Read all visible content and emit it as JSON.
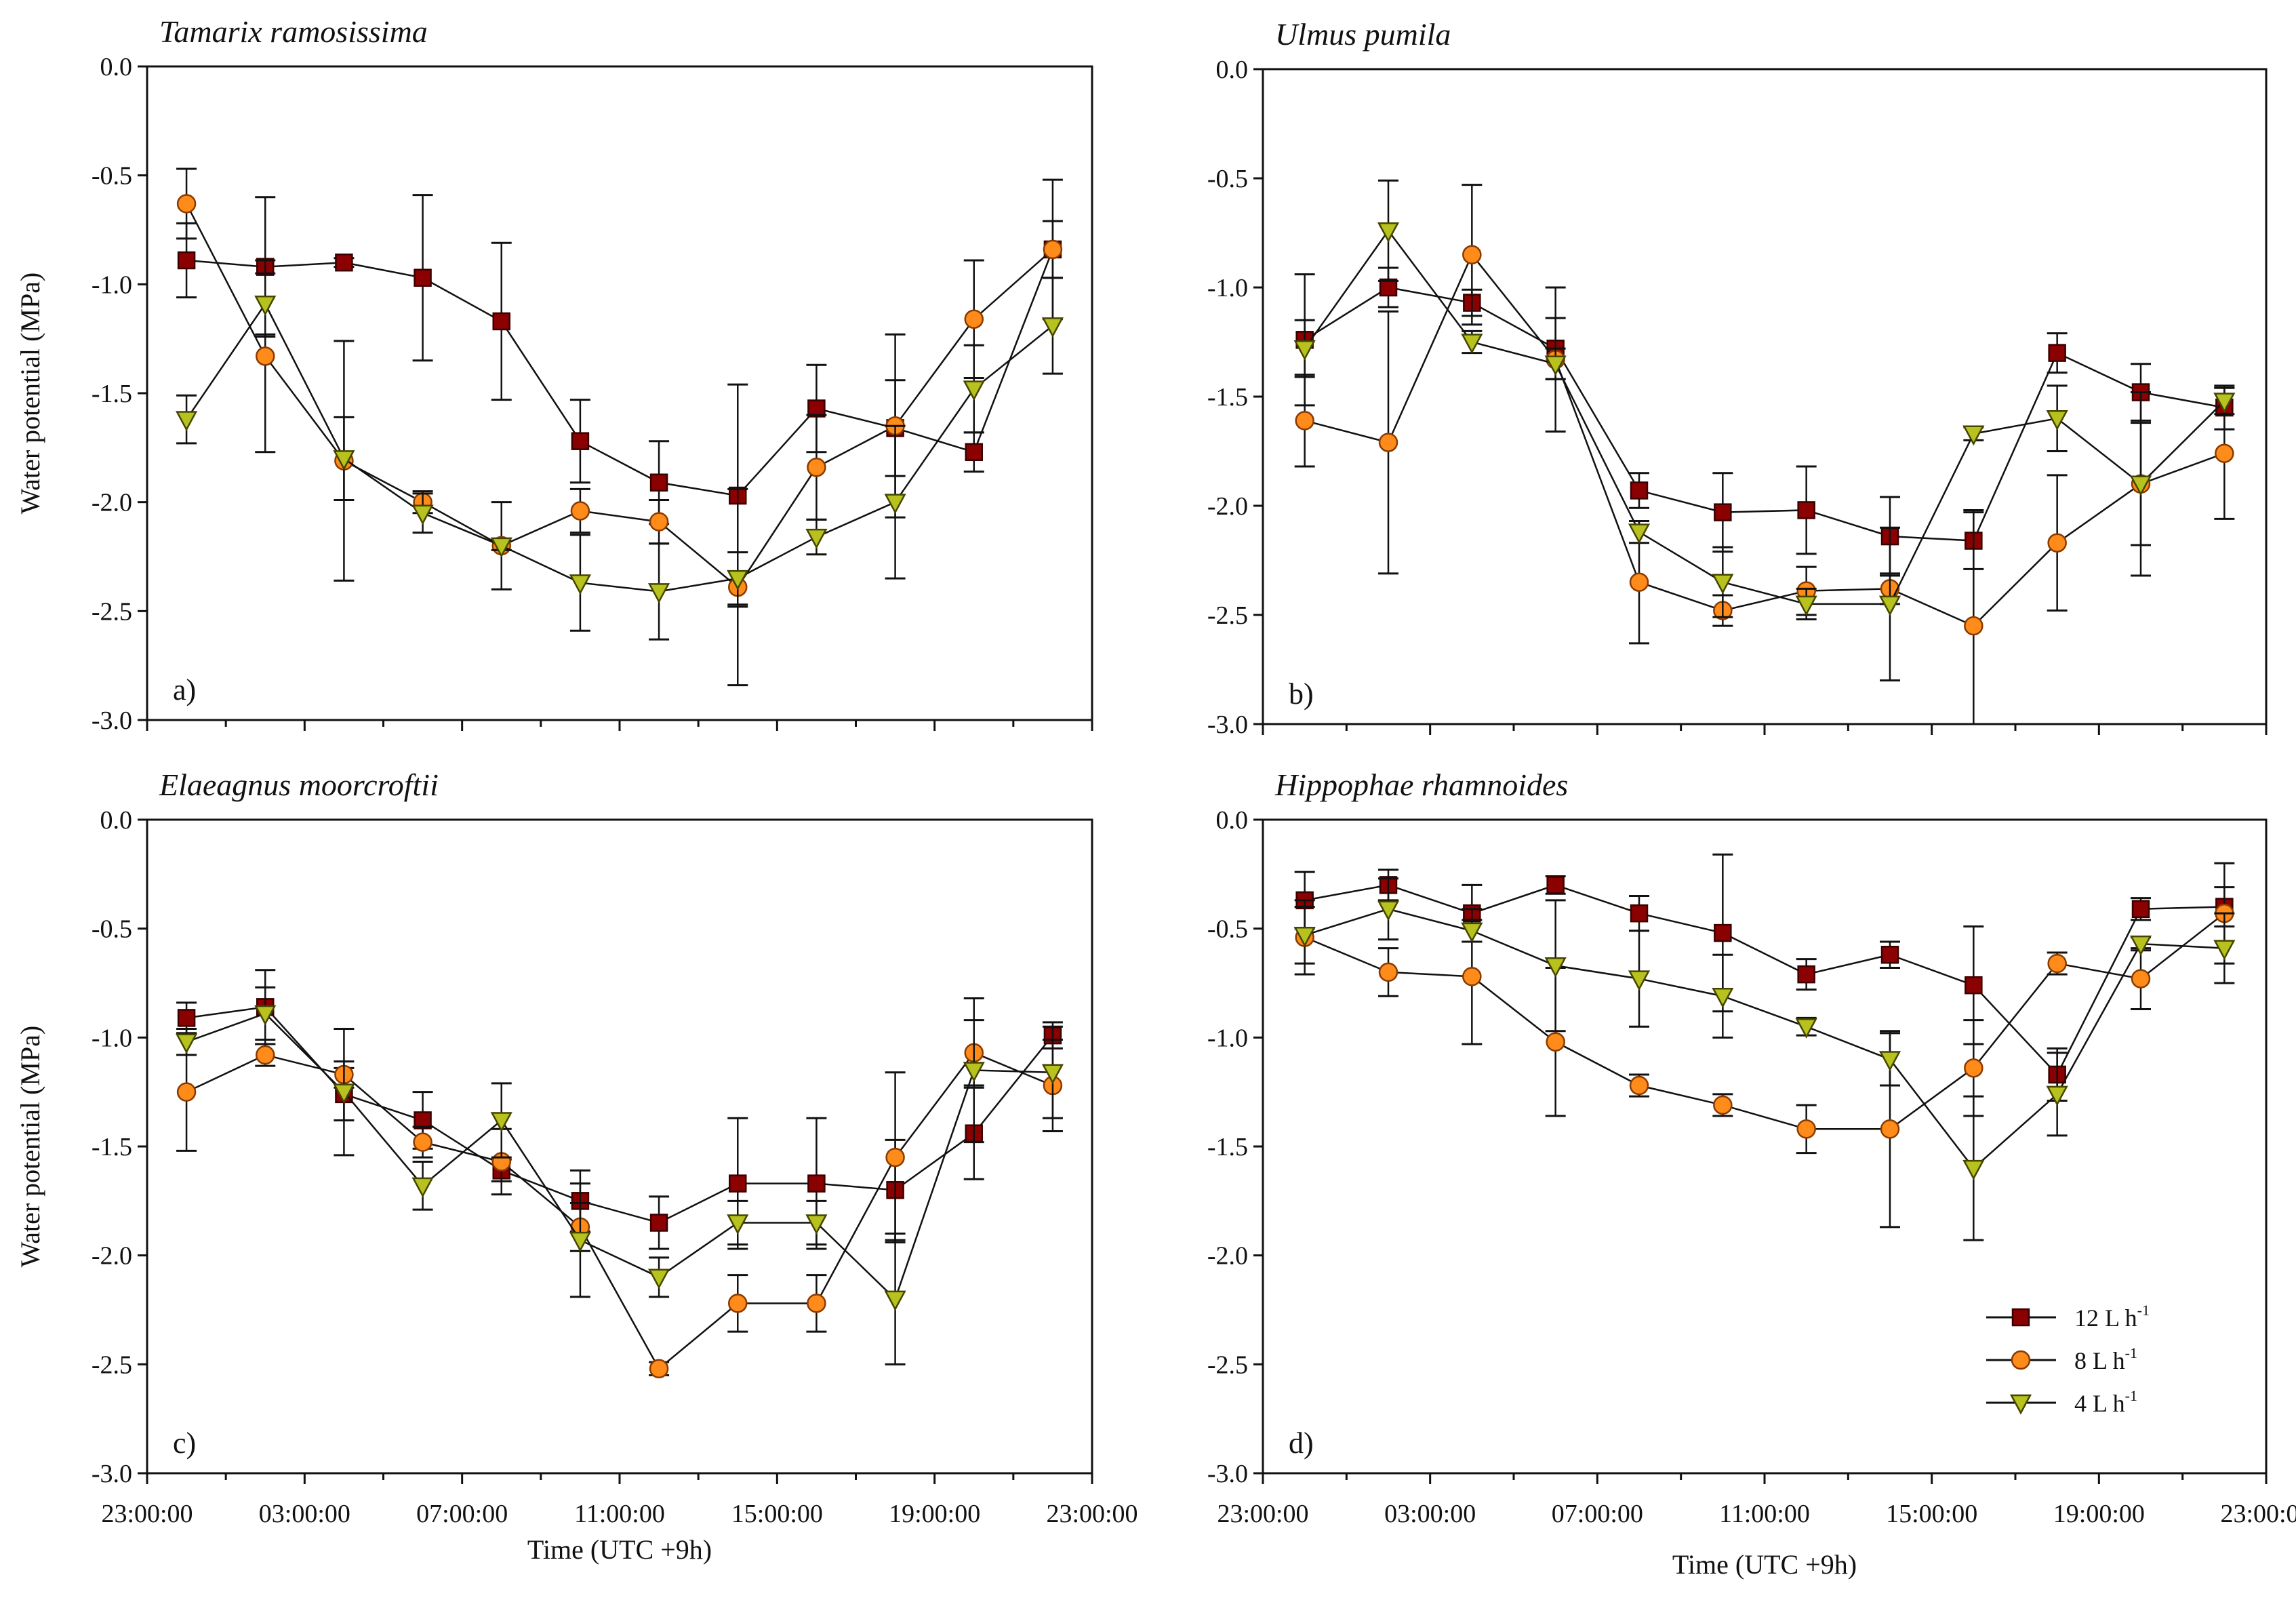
{
  "legend": [
    {
      "base": "12 L h",
      "sup": "-1",
      "color": "#8b0000",
      "stroke": "#3a0000",
      "marker": "square"
    },
    {
      "base": "8 L h",
      "sup": "-1",
      "color": "#ff8c1a",
      "stroke": "#8a3a00",
      "marker": "circle"
    },
    {
      "base": "4 L h",
      "sup": "-1",
      "color": "#b7c21f",
      "stroke": "#454500",
      "marker": "triangle-down"
    }
  ],
  "chart_data": [
    {
      "type": "line",
      "title": "Tamarix ramosissima",
      "panel_label": "a)",
      "ylabel": "Water potential (MPa)",
      "xlabel": "",
      "ylim": [
        -3.0,
        0.0
      ],
      "y_ticks": [
        "0.0",
        "-0.5",
        "-1.0",
        "-1.5",
        "-2.0",
        "-2.5",
        "-3.0"
      ],
      "x_tick_labels": [],
      "x_hours_after_2300": [
        1,
        3,
        5,
        7,
        9,
        11,
        13,
        15,
        17,
        19,
        21,
        23
      ],
      "series": [
        {
          "name": "12 L h-1",
          "values": [
            -0.89,
            -0.92,
            -0.9,
            -0.97,
            -1.17,
            -1.72,
            -1.91,
            -1.97,
            -1.57,
            -1.66,
            -1.77,
            -0.84
          ],
          "errors": [
            0.17,
            0.32,
            0.02,
            0.38,
            0.36,
            0.19,
            0.19,
            0.51,
            0.2,
            0.22,
            0.09,
            0.13
          ]
        },
        {
          "name": "8 L h-1",
          "values": [
            -0.63,
            -1.33,
            -1.81,
            -2.0,
            -2.2,
            -2.04,
            -2.09,
            -2.39,
            -1.84,
            -1.65,
            -1.16,
            -0.84
          ],
          "errors": [
            0.16,
            0.44,
            0.55,
            0.05,
            0.2,
            0.1,
            0.1,
            0.45,
            0.24,
            0.42,
            0.27,
            0.32
          ]
        },
        {
          "name": "4 L h-1",
          "values": [
            -1.62,
            -1.09,
            -1.8,
            -2.05,
            -2.2,
            -2.37,
            -2.41,
            -2.35,
            -2.16,
            -2.0,
            -1.48,
            -1.19
          ],
          "errors": [
            0.11,
            0.14,
            0.19,
            0.09,
            0.02,
            0.22,
            0.22,
            0.12,
            0.08,
            0.35,
            0.2,
            0.22
          ]
        }
      ]
    },
    {
      "type": "line",
      "title": "Ulmus pumila",
      "panel_label": "b)",
      "ylabel": "",
      "xlabel": "",
      "ylim": [
        -3.0,
        0.0
      ],
      "y_ticks": [
        "0.0",
        "-0.5",
        "-1.0",
        "-1.5",
        "-2.0",
        "-2.5",
        "-3.0"
      ],
      "x_tick_labels": [],
      "x_hours_after_2300": [
        1,
        3,
        5,
        7,
        9,
        11,
        13,
        15,
        17,
        19,
        21,
        23
      ],
      "series": [
        {
          "name": "12 L h-1",
          "values": [
            -1.24,
            -1.0,
            -1.07,
            -1.28,
            -1.93,
            -2.03,
            -2.02,
            -2.14,
            -2.16,
            -1.3,
            -1.48,
            -1.55
          ],
          "errors": [
            0.3,
            0.09,
            0.06,
            0.14,
            0.08,
            0.18,
            0.2,
            0.18,
            0.13,
            0.09,
            0.13,
            0.1
          ]
        },
        {
          "name": "8 L h-1",
          "values": [
            -1.61,
            -1.71,
            -0.85,
            -1.33,
            -2.35,
            -2.48,
            -2.39,
            -2.38,
            -2.55,
            -2.17,
            -1.9,
            -1.76
          ],
          "errors": [
            0.21,
            0.6,
            0.32,
            0.33,
            0.28,
            0.07,
            0.11,
            0.07,
            0.53,
            0.31,
            0.42,
            0.3
          ]
        },
        {
          "name": "4 L h-1",
          "values": [
            -1.28,
            -0.74,
            -1.25,
            -1.35,
            -2.12,
            -2.35,
            -2.45,
            -2.45,
            -1.67,
            -1.6,
            -1.9,
            -1.52
          ],
          "errors": [
            0.13,
            0.23,
            0.05,
            0.07,
            0.05,
            0.16,
            0.07,
            0.35,
            0.03,
            0.15,
            0.28,
            0.06
          ]
        }
      ]
    },
    {
      "type": "line",
      "title": "Elaeagnus moorcroftii",
      "panel_label": "c)",
      "ylabel": "Water potential (MPa)",
      "xlabel": "Time (UTC +9h)",
      "ylim": [
        -3.0,
        0.0
      ],
      "y_ticks": [
        "0.0",
        "-0.5",
        "-1.0",
        "-1.5",
        "-2.0",
        "-2.5",
        "-3.0"
      ],
      "x_tick_labels": [
        "23:00:00",
        "03:00:00",
        "07:00:00",
        "11:00:00",
        "15:00:00",
        "19:00:00",
        "23:00:00"
      ],
      "x_hours_after_2300": [
        1,
        3,
        5,
        7,
        9,
        11,
        13,
        15,
        17,
        19,
        21,
        23
      ],
      "series": [
        {
          "name": "12 L h-1",
          "values": [
            -0.91,
            -0.86,
            -1.26,
            -1.38,
            -1.61,
            -1.75,
            -1.85,
            -1.67,
            -1.67,
            -1.7,
            -1.44,
            -0.99
          ],
          "errors": [
            0.07,
            0.17,
            0.12,
            0.13,
            0.05,
            0.14,
            0.12,
            0.3,
            0.3,
            0.23,
            0.21,
            0.06
          ]
        },
        {
          "name": "8 L h-1",
          "values": [
            -1.25,
            -1.08,
            -1.17,
            -1.48,
            -1.57,
            -1.87,
            -2.52,
            -2.22,
            -2.22,
            -1.55,
            -1.07,
            -1.22
          ],
          "errors": [
            0.27,
            0.05,
            0.06,
            0.07,
            0.15,
            0.11,
            0.03,
            0.13,
            0.13,
            0.39,
            0.15,
            0.21
          ]
        },
        {
          "name": "4 L h-1",
          "values": [
            -1.02,
            -0.89,
            -1.25,
            -1.68,
            -1.38,
            -1.93,
            -2.1,
            -1.85,
            -1.85,
            -2.2,
            -1.15,
            -1.16
          ],
          "errors": [
            0.06,
            0.12,
            0.29,
            0.11,
            0.17,
            0.26,
            0.09,
            0.1,
            0.1,
            0.3,
            0.33,
            0.21
          ]
        }
      ]
    },
    {
      "type": "line",
      "title": "Hippophae rhamnoides",
      "panel_label": "d)",
      "ylabel": "",
      "xlabel": "Time (UTC +9h)",
      "ylim": [
        -3.0,
        0.0
      ],
      "y_ticks": [
        "0.0",
        "-0.5",
        "-1.0",
        "-1.5",
        "-2.0",
        "-2.5",
        "-3.0"
      ],
      "x_tick_labels": [
        "23:00:00",
        "03:00:00",
        "07:00:00",
        "11:00:00",
        "15:00:00",
        "19:00:00",
        "23:00:00"
      ],
      "x_hours_after_2300": [
        1,
        3,
        5,
        7,
        9,
        11,
        13,
        15,
        17,
        19,
        21,
        23
      ],
      "legend_position": "bottom-right",
      "series": [
        {
          "name": "12 L h-1",
          "values": [
            -0.37,
            -0.3,
            -0.43,
            -0.3,
            -0.43,
            -0.52,
            -0.71,
            -0.62,
            -0.76,
            -1.17,
            -0.41,
            -0.4
          ],
          "errors": [
            0.13,
            0.07,
            0.13,
            0.04,
            0.08,
            0.36,
            0.07,
            0.06,
            0.27,
            0.12,
            0.05,
            0.09
          ]
        },
        {
          "name": "8 L h-1",
          "values": [
            -0.54,
            -0.7,
            -0.72,
            -1.02,
            -1.22,
            -1.31,
            -1.42,
            -1.42,
            -1.14,
            -0.66,
            -0.73,
            -0.43
          ],
          "errors": [
            0.17,
            0.11,
            0.31,
            0.34,
            0.05,
            0.05,
            0.11,
            0.45,
            0.22,
            0.05,
            0.14,
            0.23
          ]
        },
        {
          "name": "4 L h-1",
          "values": [
            -0.53,
            -0.41,
            -0.51,
            -0.67,
            -0.73,
            -0.81,
            -0.95,
            -1.1,
            -1.6,
            -1.26,
            -0.57,
            -0.59
          ],
          "errors": [
            0.13,
            0.14,
            0.05,
            0.3,
            0.22,
            0.19,
            0.04,
            0.12,
            0.33,
            0.19,
            0.03,
            0.16
          ]
        }
      ]
    }
  ]
}
